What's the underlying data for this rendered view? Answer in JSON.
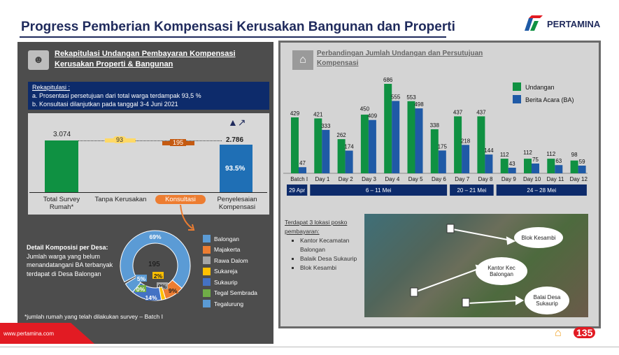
{
  "title": "Progress Pemberian Kompensasi Kerusakan Bangunan dan Properti",
  "brand": {
    "name": "PERTAMINA",
    "website": "www.pertamina.com",
    "page_number": "135"
  },
  "left": {
    "header": "Rekapitulasi Undangan Pembayaran Kompensasi Kerusakan Properti & Bangunan",
    "header_icon": "people-icon",
    "rekap_title": "Rekapitulasi :",
    "rekap_a": "a. Prosentasi persetujuan dari total warga terdampak 93,5 %",
    "rekap_b": "b. Konsultasi dilanjutkan pada tanggal 3-4 Juni 2021",
    "waterfall": {
      "total_label": "3.074",
      "total_cat": "Total Survey Rumah*",
      "tanpa_label": "93",
      "tanpa_cat": "Tanpa Kerusakan",
      "konsul_label": "195",
      "konsul_cat": "Konsultasi",
      "final_label": "2.786",
      "final_pct": "93.5%",
      "final_cat": "Penyelesaian Kompensasi",
      "values": [
        3074,
        93,
        195,
        2786
      ]
    },
    "detail_title": "Detail Komposisi per Desa:",
    "detail_text": "Jumlah warga yang belum menandatangani BA terbanyak terdapat di Desa Balongan",
    "donut_center": "195",
    "donut": [
      {
        "name": "Balongan",
        "pct": 69,
        "label": "69%",
        "color": "#5b9bd5"
      },
      {
        "name": "Majakerta",
        "pct": 9,
        "label": "9%",
        "color": "#ed7d31"
      },
      {
        "name": "Rawa Dalom",
        "pct": 0,
        "label": "0%",
        "color": "#a5a5a5"
      },
      {
        "name": "Sukareja",
        "pct": 2,
        "label": "2%",
        "color": "#ffc000"
      },
      {
        "name": "Sukaurip",
        "pct": 14,
        "label": "14%",
        "color": "#4472c4"
      },
      {
        "name": "Tegal Sembrada",
        "pct": 0,
        "label": "0%",
        "color": "#70ad47"
      },
      {
        "name": "Tegalurung",
        "pct": 5,
        "label": "5%",
        "color": "#5b9bd5"
      }
    ],
    "footnote": "*jumlah rumah yang telah dilakukan survey – Batch I"
  },
  "right": {
    "header": "Perbandingan Jumlah Undangan dan Persutujuan Kompensasi",
    "header_icon": "house-icon",
    "periods": [
      {
        "label": "29 Apr",
        "span": 1
      },
      {
        "label": "6 – 11 Mei",
        "span": 6
      },
      {
        "label": "20 – 21 Mei",
        "span": 2
      },
      {
        "label": "24 – 28 Mei",
        "span": 4
      }
    ],
    "lokasi_title": "Terdapat 3 lokasi posko pembayaran:",
    "lokasi": [
      "Kantor Kecamatan Balongan",
      "Balaik Desa Sukaurip",
      "Blok Kesambi"
    ],
    "map_labels": [
      "Blok Kesambi",
      "Kantor Kec Balongan",
      "Balai Desa Sukaurip"
    ]
  },
  "chart_data": {
    "type": "bar",
    "categories": [
      "Batch I",
      "Day 1",
      "Day 2",
      "Day 3",
      "Day 4",
      "Day 5",
      "Day 6",
      "Day 7",
      "Day 8",
      "Day 9",
      "Day 10",
      "Day 11",
      "Day 12"
    ],
    "series": [
      {
        "name": "Undangan",
        "color": "#0f9142",
        "values": [
          429,
          421,
          262,
          450,
          686,
          553,
          338,
          437,
          437,
          112,
          112,
          112,
          98
        ]
      },
      {
        "name": "Berita Acara (BA)",
        "color": "#1f5aa6",
        "values": [
          47,
          333,
          174,
          409,
          555,
          498,
          175,
          218,
          144,
          43,
          75,
          63,
          59
        ]
      }
    ],
    "legend": "top-right",
    "grid": false
  }
}
